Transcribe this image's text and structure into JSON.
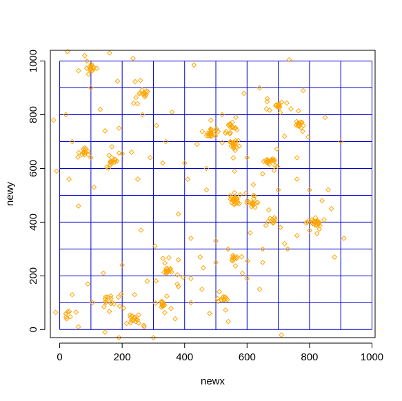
{
  "chart_data": {
    "type": "scatter",
    "title": "",
    "xlabel": "newx",
    "ylabel": "newy",
    "xlim": [
      -30,
      1010
    ],
    "ylim": [
      -30,
      1040
    ],
    "xticks": [
      0,
      200,
      400,
      600,
      800,
      1000
    ],
    "yticks": [
      0,
      200,
      400,
      600,
      800,
      1000
    ],
    "xtick_labels": [
      "0",
      "200",
      "400",
      "600",
      "800",
      "1000"
    ],
    "ytick_labels": [
      "0",
      "200",
      "400",
      "600",
      "800",
      "1000"
    ],
    "grid": {
      "shown": true,
      "color": "#0000cc",
      "x_lines": [
        0,
        100,
        200,
        300,
        400,
        500,
        600,
        700,
        800,
        900,
        1000
      ],
      "y_lines": [
        0,
        100,
        200,
        300,
        400,
        500,
        600,
        700,
        800,
        900,
        1000
      ]
    },
    "point_marker": "open-diamond",
    "point_color": "#ffa500",
    "axis_color": "#000000",
    "clusters": [
      {
        "cx": 100,
        "cy": 970,
        "n": 16
      },
      {
        "cx": 265,
        "cy": 880,
        "n": 18
      },
      {
        "cx": 480,
        "cy": 730,
        "n": 24
      },
      {
        "cx": 555,
        "cy": 760,
        "n": 14
      },
      {
        "cx": 555,
        "cy": 690,
        "n": 22
      },
      {
        "cx": 700,
        "cy": 835,
        "n": 16
      },
      {
        "cx": 770,
        "cy": 760,
        "n": 16
      },
      {
        "cx": 675,
        "cy": 630,
        "n": 22
      },
      {
        "cx": 80,
        "cy": 660,
        "n": 14
      },
      {
        "cx": 170,
        "cy": 630,
        "n": 16
      },
      {
        "cx": 560,
        "cy": 480,
        "n": 24
      },
      {
        "cx": 610,
        "cy": 470,
        "n": 18
      },
      {
        "cx": 820,
        "cy": 395,
        "n": 28
      },
      {
        "cx": 680,
        "cy": 410,
        "n": 12
      },
      {
        "cx": 560,
        "cy": 270,
        "n": 14
      },
      {
        "cx": 345,
        "cy": 220,
        "n": 20
      },
      {
        "cx": 325,
        "cy": 95,
        "n": 14
      },
      {
        "cx": 530,
        "cy": 115,
        "n": 14
      },
      {
        "cx": 160,
        "cy": 110,
        "n": 16
      },
      {
        "cx": 240,
        "cy": 40,
        "n": 20
      },
      {
        "cx": 30,
        "cy": 60,
        "n": 8
      }
    ],
    "scattered_points": [
      [
        25,
        1035
      ],
      [
        80,
        1020
      ],
      [
        160,
        1030
      ],
      [
        235,
        1010
      ],
      [
        430,
        985
      ],
      [
        735,
        1005
      ],
      [
        20,
        800
      ],
      [
        145,
        740
      ],
      [
        190,
        750
      ],
      [
        290,
        640
      ],
      [
        410,
        560
      ],
      [
        470,
        600
      ],
      [
        420,
        340
      ],
      [
        450,
        270
      ],
      [
        500,
        330
      ],
      [
        380,
        160
      ],
      [
        420,
        190
      ],
      [
        455,
        150
      ],
      [
        650,
        300
      ],
      [
        720,
        320
      ],
      [
        760,
        350
      ],
      [
        900,
        700
      ],
      [
        910,
        340
      ],
      [
        880,
        270
      ],
      [
        620,
        540
      ],
      [
        700,
        520
      ],
      [
        650,
        580
      ],
      [
        380,
        260
      ],
      [
        260,
        370
      ],
      [
        200,
        240
      ],
      [
        140,
        210
      ],
      [
        90,
        170
      ],
      [
        60,
        460
      ],
      [
        305,
        310
      ],
      [
        380,
        430
      ],
      [
        470,
        520
      ],
      [
        -10,
        590
      ],
      [
        -20,
        780
      ],
      [
        30,
        560
      ],
      [
        110,
        530
      ],
      [
        250,
        560
      ],
      [
        265,
        800
      ],
      [
        340,
        700
      ],
      [
        400,
        620
      ],
      [
        540,
        30
      ],
      [
        600,
        190
      ],
      [
        640,
        150
      ],
      [
        710,
        -20
      ],
      [
        190,
        -30
      ],
      [
        145,
        -10
      ],
      [
        300,
        -30
      ],
      [
        60,
        10
      ],
      [
        480,
        60
      ],
      [
        860,
        520
      ],
      [
        800,
        520
      ],
      [
        760,
        640
      ],
      [
        720,
        720
      ],
      [
        850,
        790
      ],
      [
        780,
        890
      ],
      [
        640,
        900
      ],
      [
        600,
        640
      ],
      [
        560,
        590
      ],
      [
        360,
        810
      ],
      [
        310,
        760
      ],
      [
        230,
        660
      ],
      [
        130,
        820
      ],
      [
        40,
        700
      ],
      [
        100,
        900
      ],
      [
        185,
        925
      ],
      [
        330,
        620
      ],
      [
        440,
        690
      ],
      [
        520,
        800
      ],
      [
        590,
        880
      ],
      [
        665,
        860
      ],
      [
        760,
        560
      ],
      [
        840,
        480
      ],
      [
        870,
        450
      ],
      [
        730,
        300
      ],
      [
        240,
        130
      ],
      [
        280,
        180
      ],
      [
        205,
        80
      ],
      [
        105,
        100
      ],
      [
        40,
        130
      ],
      [
        370,
        40
      ],
      [
        420,
        100
      ],
      [
        460,
        230
      ],
      [
        500,
        250
      ],
      [
        610,
        360
      ],
      [
        650,
        250
      ],
      [
        585,
        210
      ]
    ]
  }
}
